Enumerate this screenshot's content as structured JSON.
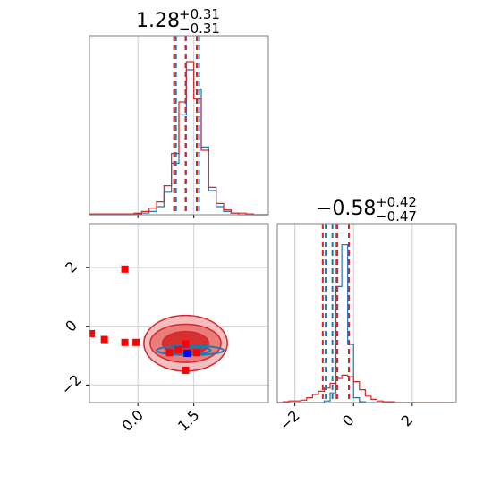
{
  "colors": {
    "blue": "#1f77b4",
    "red": "#d62728",
    "marker_red": "#ff0000",
    "marker_blue": "#0000ff",
    "grid": "#cfcfcf",
    "frame": "#808080"
  },
  "chart_data": {
    "type": "corner",
    "grid": true,
    "params": [
      {
        "title_value": "1.28",
        "title_plus": "+0.31",
        "title_minus": "−0.31",
        "range": [
          -1.3,
          3.5
        ],
        "ticks": [
          0.0,
          1.5
        ],
        "tick_labels": [
          "0.0",
          "1.5"
        ],
        "quantiles": {
          "blue": [
            1.02,
            1.29,
            1.64
          ],
          "red": [
            0.97,
            1.28,
            1.58
          ]
        }
      },
      {
        "title_value": "−0.58",
        "title_plus": "+0.42",
        "title_minus": "−0.47",
        "range": [
          -2.6,
          3.5
        ],
        "ticks": [
          -2,
          0,
          2
        ],
        "tick_labels": [
          "−2",
          "0",
          "2"
        ],
        "quantiles": {
          "blue": [
            -0.95,
            -0.72,
            -0.55
          ],
          "red": [
            -1.05,
            -0.58,
            -0.16
          ]
        }
      }
    ],
    "hist1d": [
      {
        "bin_edges": [
          -1.3,
          1.5
        ],
        "note": "see bins",
        "bins_x": [
          -1.3,
          -1.1,
          -0.9,
          -0.7,
          -0.5,
          -0.3,
          -0.1,
          0.1,
          0.3,
          0.5,
          0.7,
          0.9,
          1.1,
          1.3,
          1.5,
          1.7,
          1.9,
          2.1,
          2.3,
          2.5,
          2.7,
          2.9,
          3.1,
          3.3,
          3.5
        ],
        "blue": [
          0,
          0,
          0,
          0,
          0,
          0,
          0.005,
          0.01,
          0.02,
          0.05,
          0.14,
          0.32,
          0.62,
          0.9,
          0.78,
          0.42,
          0.15,
          0.05,
          0.02,
          0.01,
          0,
          0,
          0,
          0
        ],
        "red": [
          0.005,
          0.005,
          0.005,
          0.005,
          0.005,
          0.005,
          0.01,
          0.02,
          0.04,
          0.08,
          0.18,
          0.38,
          0.7,
          0.95,
          0.72,
          0.4,
          0.17,
          0.07,
          0.03,
          0.01,
          0.01,
          0.005,
          0,
          0
        ]
      },
      {
        "bins_x": [
          -2.6,
          -2.4,
          -2.2,
          -2.0,
          -1.8,
          -1.6,
          -1.4,
          -1.2,
          -1.0,
          -0.8,
          -0.6,
          -0.4,
          -0.2,
          0.0,
          0.2,
          0.4,
          0.6,
          0.8,
          1.0,
          1.2,
          1.4,
          1.6,
          1.8,
          2.0,
          2.2,
          2.4,
          2.6,
          2.8,
          3.0,
          3.2,
          3.4
        ],
        "blue": [
          0,
          0,
          0,
          0,
          0,
          0,
          0,
          0,
          0.01,
          0.06,
          0.72,
          0.98,
          0.36,
          0.03,
          0.005,
          0,
          0,
          0,
          0,
          0,
          0,
          0,
          0,
          0,
          0,
          0,
          0,
          0,
          0,
          0
        ],
        "red": [
          0,
          0.005,
          0.01,
          0.01,
          0.015,
          0.03,
          0.05,
          0.07,
          0.09,
          0.12,
          0.15,
          0.17,
          0.16,
          0.13,
          0.08,
          0.04,
          0.02,
          0.01,
          0.005,
          0.005,
          0,
          0,
          0,
          0,
          0,
          0,
          0,
          0,
          0,
          0
        ]
      }
    ],
    "contours2d": {
      "red": {
        "center": [
          1.28,
          -0.58
        ],
        "levels": [
          [
            0.62,
            0.4
          ],
          [
            0.95,
            0.65
          ],
          [
            1.12,
            0.95
          ]
        ]
      },
      "blue": {
        "center": [
          1.4,
          -0.82
        ],
        "levels": [
          [
            0.55,
            0.12
          ],
          [
            0.9,
            0.16
          ]
        ]
      }
    },
    "markers": {
      "red": [
        [
          -1.25,
          -0.25
        ],
        [
          -0.9,
          -0.45
        ],
        [
          -0.35,
          -0.55
        ],
        [
          -0.05,
          -0.55
        ],
        [
          -0.35,
          1.95
        ],
        [
          0.85,
          -0.9
        ],
        [
          1.08,
          -0.8
        ],
        [
          1.28,
          -0.6
        ],
        [
          1.28,
          -1.5
        ],
        [
          1.58,
          -0.9
        ]
      ],
      "blue": [
        [
          1.32,
          -0.92
        ]
      ]
    },
    "scatter_seed_points": 160
  }
}
